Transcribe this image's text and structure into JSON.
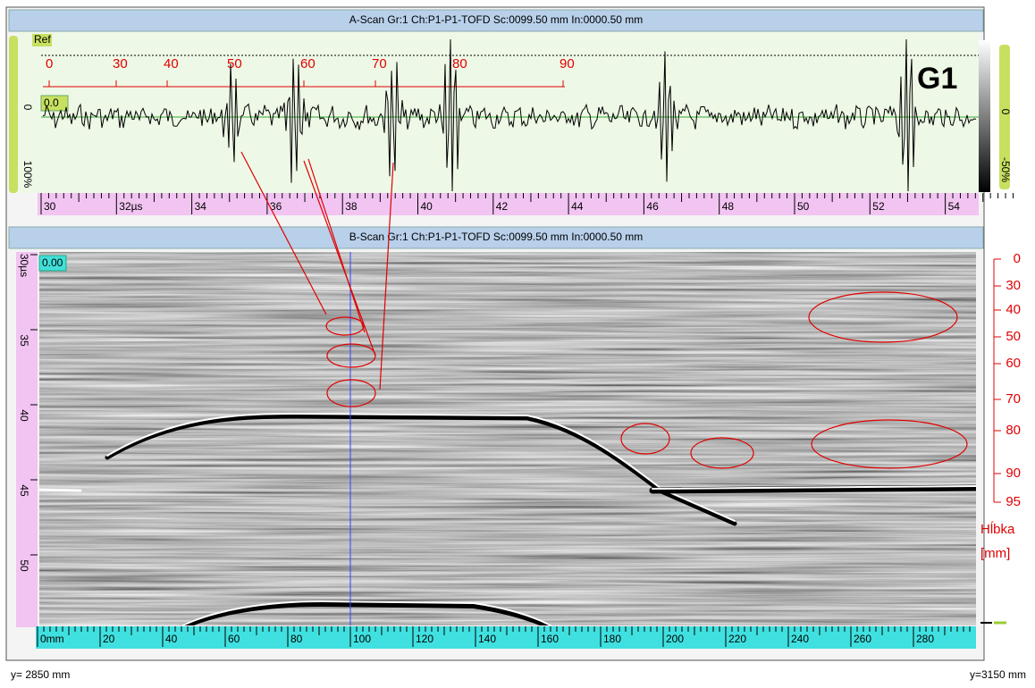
{
  "a_scan": {
    "title": "A-Scan Gr:1 Ch:P1-P1-TOFD Sc:0099.50 mm In:0000.50 mm",
    "ref": "Ref",
    "gate_value": "0.0",
    "left_zero": "0",
    "left_percent": "100%",
    "gate_name": "G1",
    "right_zero": "0",
    "right_percent": "-50%",
    "depth_ruler": [
      "0",
      "30",
      "40",
      "50",
      "60",
      "70",
      "80",
      "90"
    ],
    "time_axis": [
      "30",
      "32µs",
      "34",
      "36",
      "38",
      "40",
      "42",
      "44",
      "46",
      "48",
      "50",
      "52",
      "54"
    ]
  },
  "b_scan": {
    "title": "B-Scan Gr:1 Ch:P1-P1-TOFD Sc:0099.50 mm In:0000.50 mm",
    "cursor_value": "0.00",
    "time_axis": [
      "30µs",
      "35",
      "40",
      "45",
      "50"
    ],
    "depth_axis": [
      "0",
      "30",
      "40",
      "50",
      "60",
      "70",
      "80",
      "90",
      "95"
    ],
    "depth_label": "Hĺbka",
    "depth_unit": "[mm]",
    "scan_axis": [
      "0mm",
      "20",
      "40",
      "60",
      "80",
      "100",
      "120",
      "140",
      "160",
      "180",
      "200",
      "220",
      "240",
      "260",
      "280"
    ]
  },
  "footer": {
    "start": "y= 2850 mm",
    "end": "y=3150 mm"
  }
}
